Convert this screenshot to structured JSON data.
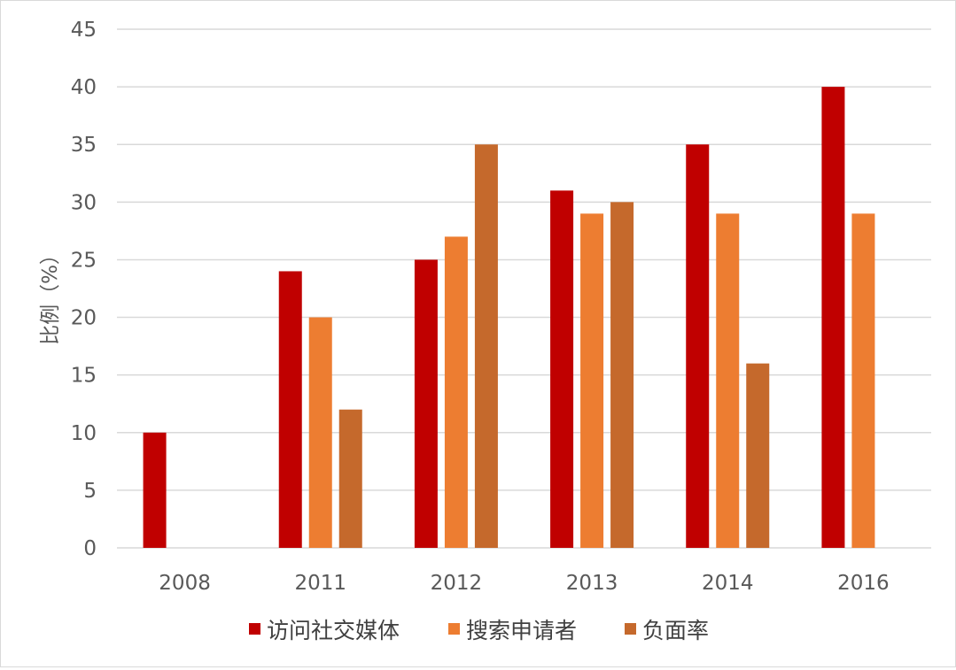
{
  "chart_data": {
    "type": "bar",
    "title": "",
    "xlabel": "",
    "ylabel": "比例（%）",
    "categories": [
      "2008",
      "2011",
      "2012",
      "2013",
      "2014",
      "2016"
    ],
    "series": [
      {
        "name": "访问社交媒体",
        "color": "#c00000",
        "values": [
          10,
          24,
          25,
          31,
          35,
          40
        ]
      },
      {
        "name": "搜索申请者",
        "color": "#ed7d31",
        "values": [
          null,
          20,
          27,
          29,
          29,
          29
        ]
      },
      {
        "name": "负面率",
        "color": "#c5692c",
        "values": [
          null,
          12,
          35,
          30,
          16,
          null
        ]
      }
    ],
    "ylim": [
      0,
      45
    ],
    "yticks": [
      0,
      5,
      10,
      15,
      20,
      25,
      30,
      35,
      40,
      45
    ],
    "grid": true,
    "gridlines": "horizontal",
    "legend_position": "bottom"
  }
}
